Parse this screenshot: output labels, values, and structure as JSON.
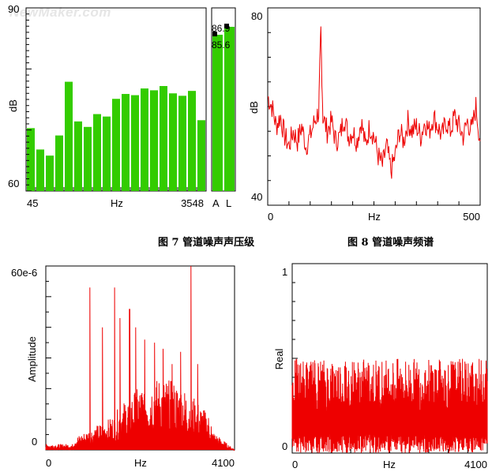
{
  "watermark": "NewMaker.com",
  "captions": {
    "fig7": "图 7  管道噪声声压级",
    "fig8": "图 8 管道噪声频谱"
  },
  "colors": {
    "bar": "#33cc00",
    "line": "#ee0000",
    "axis": "#000000",
    "background": "#ffffff"
  },
  "chart_data": [
    {
      "id": "bar-spectrum",
      "type": "bar",
      "title": "",
      "ylabel": "dB",
      "xlabel": "Hz",
      "ylim": [
        60,
        90
      ],
      "ytick_labels": [
        "90",
        "dB",
        "60"
      ],
      "x_tick_labels": [
        "45",
        "Hz",
        "3548"
      ],
      "values": [
        70.3,
        66.8,
        65.8,
        69.1,
        77.9,
        71.4,
        70.5,
        72.6,
        72.2,
        75.1,
        75.9,
        75.7,
        76.8,
        76.5,
        77.2,
        76.0,
        75.6,
        76.4,
        71.6
      ],
      "grid": false
    },
    {
      "id": "total-levels",
      "type": "bar",
      "categories": [
        "A",
        "L"
      ],
      "values": [
        85.6,
        86.9
      ],
      "value_labels": [
        "85.6",
        "86.9"
      ],
      "ylim": [
        60,
        90
      ],
      "grid": false
    },
    {
      "id": "noise-spectrum",
      "type": "line",
      "ylabel": "dB",
      "xlabel": "Hz",
      "ylim": [
        40,
        80
      ],
      "xlim": [
        0,
        500
      ],
      "ytick_labels": [
        "80",
        "dB",
        "40"
      ],
      "x_tick_labels": [
        "0",
        "Hz",
        "500"
      ],
      "x": [
        0,
        10,
        20,
        30,
        40,
        50,
        60,
        70,
        80,
        90,
        100,
        110,
        120,
        125,
        130,
        140,
        150,
        160,
        170,
        180,
        190,
        200,
        210,
        220,
        230,
        240,
        250,
        260,
        270,
        280,
        290,
        300,
        310,
        320,
        330,
        340,
        350,
        360,
        370,
        380,
        390,
        400,
        410,
        420,
        430,
        440,
        450,
        460,
        470,
        480,
        490,
        500
      ],
      "y": [
        62,
        60,
        56,
        58,
        54,
        52,
        55,
        53,
        56,
        52,
        54,
        57,
        59,
        75,
        58,
        55,
        57,
        53,
        54,
        58,
        54,
        55,
        53,
        57,
        52,
        56,
        54,
        50,
        48,
        52,
        47,
        50,
        55,
        53,
        57,
        55,
        56,
        54,
        57,
        55,
        58,
        56,
        54,
        57,
        55,
        58,
        56,
        54,
        57,
        55,
        60,
        53
      ],
      "grid": false
    },
    {
      "id": "amplitude-spectrum",
      "type": "line",
      "ylabel": "Amplitude",
      "xlabel": "Hz",
      "ylim": [
        0,
        6e-05
      ],
      "xlim": [
        0,
        4100
      ],
      "ytick_labels": [
        "60e-6",
        "0"
      ],
      "x_tick_labels": [
        "0",
        "Hz",
        "4100"
      ],
      "peaks_x": [
        960,
        1230,
        1490,
        1610,
        1820,
        1950,
        2150,
        2360,
        2550,
        2740,
        2930,
        3150,
        3300
      ],
      "peaks_y": [
        5.3e-05,
        4e-05,
        5.3e-05,
        4.3e-05,
        4.6e-05,
        4e-05,
        3.6e-05,
        3.5e-05,
        3.3e-05,
        2.8e-05,
        3.2e-05,
        6e-05,
        2.8e-05
      ],
      "grid": false
    },
    {
      "id": "real-spectrum",
      "type": "line",
      "ylabel": "Real",
      "xlabel": "Hz",
      "ylim": [
        0,
        1
      ],
      "xlim": [
        0,
        4100
      ],
      "ytick_labels": [
        "1",
        "Real",
        "0"
      ],
      "x_tick_labels": [
        "0",
        "Hz",
        "4100"
      ],
      "baseline_y": 0.1,
      "noise_amplitude": 0.4,
      "grid": false
    }
  ]
}
